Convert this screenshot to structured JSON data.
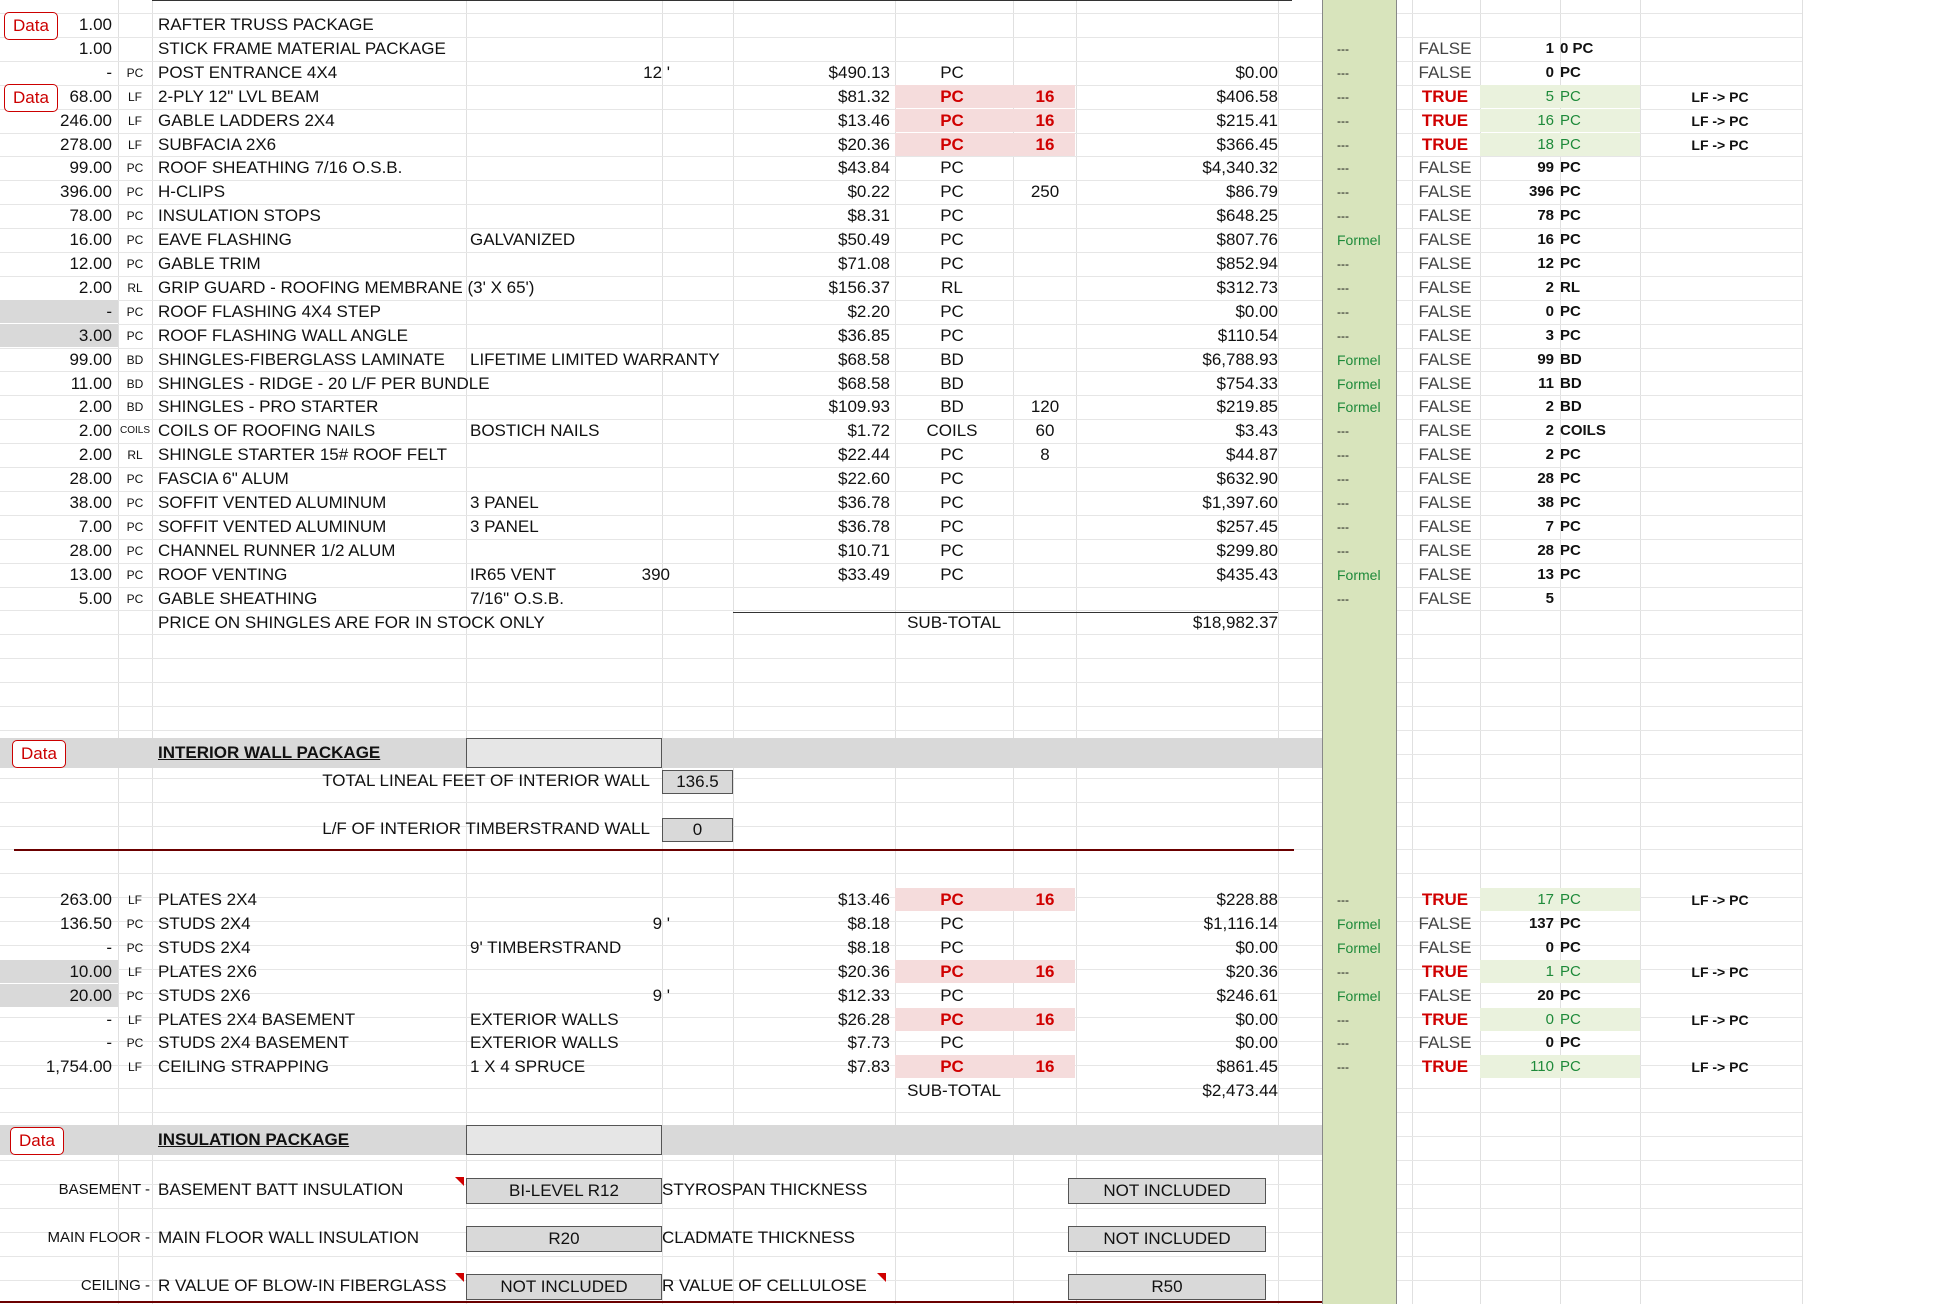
{
  "roof_rows": [
    {
      "qty": "1.00",
      "unit": "",
      "desc": "RAFTER TRUSS PACKAGE",
      "note": "",
      "len": "",
      "price": "",
      "uom": "",
      "mult": "",
      "total": "",
      "flag": "",
      "bool": "",
      "cnt": "",
      "cunit": "",
      "conv": "",
      "data_btn": "Data"
    },
    {
      "qty": "1.00",
      "unit": "",
      "desc": "STICK FRAME MATERIAL PACKAGE",
      "note": "",
      "len": "",
      "price": "",
      "uom": "",
      "mult": "",
      "total": "",
      "flag": "---",
      "bool": "FALSE",
      "cnt": "1",
      "cunit": "0 PC",
      "conv": ""
    },
    {
      "qty": "-",
      "unit": "PC",
      "desc": "POST ENTRANCE 4X4",
      "note": "",
      "len": "12 '",
      "price": "$490.13",
      "uom": "PC",
      "mult": "",
      "total": "$0.00",
      "flag": "---",
      "bool": "FALSE",
      "cnt": "0",
      "cunit": "PC",
      "conv": ""
    },
    {
      "qty": "68.00",
      "unit": "LF",
      "desc": "2-PLY 12\" LVL BEAM",
      "note": "",
      "len": "",
      "price": "$81.32",
      "uom": "PC",
      "mult": "16",
      "total": "$406.58",
      "flag": "---",
      "bool": "TRUE",
      "cnt": "5",
      "cunit": "PC",
      "conv": "LF -> PC",
      "data_btn": "Data"
    },
    {
      "qty": "246.00",
      "unit": "LF",
      "desc": "GABLE LADDERS 2X4",
      "note": "",
      "len": "",
      "price": "$13.46",
      "uom": "PC",
      "mult": "16",
      "total": "$215.41",
      "flag": "---",
      "bool": "TRUE",
      "cnt": "16",
      "cunit": "PC",
      "conv": "LF -> PC"
    },
    {
      "qty": "278.00",
      "unit": "LF",
      "desc": "SUBFACIA 2X6",
      "note": "",
      "len": "",
      "price": "$20.36",
      "uom": "PC",
      "mult": "16",
      "total": "$366.45",
      "flag": "---",
      "bool": "TRUE",
      "cnt": "18",
      "cunit": "PC",
      "conv": "LF -> PC"
    },
    {
      "qty": "99.00",
      "unit": "PC",
      "desc": "ROOF SHEATHING 7/16 O.S.B.",
      "note": "",
      "len": "",
      "price": "$43.84",
      "uom": "PC",
      "mult": "",
      "total": "$4,340.32",
      "flag": "---",
      "bool": "FALSE",
      "cnt": "99",
      "cunit": "PC",
      "conv": ""
    },
    {
      "qty": "396.00",
      "unit": "PC",
      "desc": "H-CLIPS",
      "note": "",
      "len": "",
      "price": "$0.22",
      "uom": "PC",
      "mult": "250",
      "total": "$86.79",
      "flag": "---",
      "bool": "FALSE",
      "cnt": "396",
      "cunit": "PC",
      "conv": ""
    },
    {
      "qty": "78.00",
      "unit": "PC",
      "desc": "INSULATION STOPS",
      "note": "",
      "len": "",
      "price": "$8.31",
      "uom": "PC",
      "mult": "",
      "total": "$648.25",
      "flag": "---",
      "bool": "FALSE",
      "cnt": "78",
      "cunit": "PC",
      "conv": ""
    },
    {
      "qty": "16.00",
      "unit": "PC",
      "desc": "EAVE FLASHING",
      "note": "GALVANIZED",
      "len": "",
      "price": "$50.49",
      "uom": "PC",
      "mult": "",
      "total": "$807.76",
      "flag": "Formel",
      "bool": "FALSE",
      "cnt": "16",
      "cunit": "PC",
      "conv": ""
    },
    {
      "qty": "12.00",
      "unit": "PC",
      "desc": "GABLE TRIM",
      "note": "",
      "len": "",
      "price": "$71.08",
      "uom": "PC",
      "mult": "",
      "total": "$852.94",
      "flag": "---",
      "bool": "FALSE",
      "cnt": "12",
      "cunit": "PC",
      "conv": ""
    },
    {
      "qty": "2.00",
      "unit": "RL",
      "desc": "GRIP GUARD - ROOFING MEMBRANE (3' X 65')",
      "note": "",
      "len": "",
      "price": "$156.37",
      "uom": "RL",
      "mult": "",
      "total": "$312.73",
      "flag": "---",
      "bool": "FALSE",
      "cnt": "2",
      "cunit": "RL",
      "conv": ""
    },
    {
      "qty": "-",
      "unit": "PC",
      "desc": "ROOF FLASHING 4X4 STEP",
      "note": "",
      "len": "",
      "price": "$2.20",
      "uom": "PC",
      "mult": "",
      "total": "$0.00",
      "flag": "---",
      "bool": "FALSE",
      "cnt": "0",
      "cunit": "PC",
      "conv": ""
    },
    {
      "qty": "3.00",
      "unit": "PC",
      "desc": "ROOF FLASHING WALL ANGLE",
      "note": "",
      "len": "",
      "price": "$36.85",
      "uom": "PC",
      "mult": "",
      "total": "$110.54",
      "flag": "---",
      "bool": "FALSE",
      "cnt": "3",
      "cunit": "PC",
      "conv": ""
    },
    {
      "qty": "99.00",
      "unit": "BD",
      "desc": "SHINGLES-FIBERGLASS LAMINATE",
      "note": "LIFETIME LIMITED WARRANTY",
      "len": "",
      "price": "$68.58",
      "uom": "BD",
      "mult": "",
      "total": "$6,788.93",
      "flag": "Formel",
      "bool": "FALSE",
      "cnt": "99",
      "cunit": "BD",
      "conv": ""
    },
    {
      "qty": "11.00",
      "unit": "BD",
      "desc": "SHINGLES - RIDGE - 20 L/F PER BUNDLE",
      "note": "",
      "len": "",
      "price": "$68.58",
      "uom": "BD",
      "mult": "",
      "total": "$754.33",
      "flag": "Formel",
      "bool": "FALSE",
      "cnt": "11",
      "cunit": "BD",
      "conv": ""
    },
    {
      "qty": "2.00",
      "unit": "BD",
      "desc": "SHINGLES - PRO STARTER",
      "note": "",
      "len": "",
      "price": "$109.93",
      "uom": "BD",
      "mult": "120",
      "total": "$219.85",
      "flag": "Formel",
      "bool": "FALSE",
      "cnt": "2",
      "cunit": "BD",
      "conv": ""
    },
    {
      "qty": "2.00",
      "unit": "COILS",
      "desc": "COILS OF ROOFING NAILS",
      "note": "BOSTICH NAILS",
      "len": "",
      "price": "$1.72",
      "uom": "COILS",
      "mult": "60",
      "total": "$3.43",
      "flag": "---",
      "bool": "FALSE",
      "cnt": "2",
      "cunit": "COILS",
      "conv": ""
    },
    {
      "qty": "2.00",
      "unit": "RL",
      "desc": "SHINGLE STARTER 15# ROOF FELT",
      "note": "",
      "len": "",
      "price": "$22.44",
      "uom": "PC",
      "mult": "8",
      "total": "$44.87",
      "flag": "---",
      "bool": "FALSE",
      "cnt": "2",
      "cunit": "PC",
      "conv": ""
    },
    {
      "qty": "28.00",
      "unit": "PC",
      "desc": "FASCIA 6\" ALUM",
      "note": "",
      "len": "",
      "price": "$22.60",
      "uom": "PC",
      "mult": "",
      "total": "$632.90",
      "flag": "---",
      "bool": "FALSE",
      "cnt": "28",
      "cunit": "PC",
      "conv": ""
    },
    {
      "qty": "38.00",
      "unit": "PC",
      "desc": "SOFFIT VENTED ALUMINUM",
      "note": "3 PANEL",
      "len": "",
      "price": "$36.78",
      "uom": "PC",
      "mult": "",
      "total": "$1,397.60",
      "flag": "---",
      "bool": "FALSE",
      "cnt": "38",
      "cunit": "PC",
      "conv": ""
    },
    {
      "qty": "7.00",
      "unit": "PC",
      "desc": "SOFFIT VENTED ALUMINUM",
      "note": "3 PANEL",
      "len": "",
      "price": "$36.78",
      "uom": "PC",
      "mult": "",
      "total": "$257.45",
      "flag": "---",
      "bool": "FALSE",
      "cnt": "7",
      "cunit": "PC",
      "conv": ""
    },
    {
      "qty": "28.00",
      "unit": "PC",
      "desc": "CHANNEL RUNNER 1/2 ALUM",
      "note": "",
      "len": "",
      "price": "$10.71",
      "uom": "PC",
      "mult": "",
      "total": "$299.80",
      "flag": "---",
      "bool": "FALSE",
      "cnt": "28",
      "cunit": "PC",
      "conv": ""
    },
    {
      "qty": "13.00",
      "unit": "PC",
      "desc": "ROOF VENTING",
      "note": "IR65 VENT",
      "len": "390",
      "price": "$33.49",
      "uom": "PC",
      "mult": "",
      "total": "$435.43",
      "flag": "Formel",
      "bool": "FALSE",
      "cnt": "13",
      "cunit": "PC",
      "conv": ""
    },
    {
      "qty": "5.00",
      "unit": "PC",
      "desc": "GABLE SHEATHING",
      "note": "7/16\" O.S.B.",
      "len": "",
      "price": "",
      "uom": "",
      "mult": "",
      "total": "",
      "flag": "---",
      "bool": "FALSE",
      "cnt": "5",
      "cunit": "",
      "conv": ""
    }
  ],
  "roof_footer": {
    "note": "PRICE ON SHINGLES ARE FOR IN STOCK ONLY",
    "subtotal_label": "SUB-TOTAL",
    "subtotal": "$18,982.37"
  },
  "interior": {
    "data_btn": "Data",
    "title": "INTERIOR WALL PACKAGE",
    "total_lf_label": "TOTAL LINEAL FEET OF INTERIOR WALL",
    "total_lf_value": "136.5",
    "timberstrand_label": "L/F OF INTERIOR TIMBERSTRAND WALL",
    "timberstrand_value": "0",
    "rows": [
      {
        "qty": "263.00",
        "unit": "LF",
        "desc": "PLATES 2X4",
        "note": "",
        "len": "",
        "price": "$13.46",
        "uom": "PC",
        "mult": "16",
        "total": "$228.88",
        "flag": "---",
        "bool": "TRUE",
        "cnt": "17",
        "cunit": "PC",
        "conv": "LF -> PC"
      },
      {
        "qty": "136.50",
        "unit": "PC",
        "desc": "STUDS 2X4",
        "note": "",
        "len": "9 '",
        "price": "$8.18",
        "uom": "PC",
        "mult": "",
        "total": "$1,116.14",
        "flag": "Formel",
        "bool": "FALSE",
        "cnt": "137",
        "cunit": "PC",
        "conv": ""
      },
      {
        "qty": "-",
        "unit": "PC",
        "desc": "STUDS 2X4",
        "note": "9' TIMBERSTRAND",
        "len": "",
        "price": "$8.18",
        "uom": "PC",
        "mult": "",
        "total": "$0.00",
        "flag": "Formel",
        "bool": "FALSE",
        "cnt": "0",
        "cunit": "PC",
        "conv": ""
      },
      {
        "qty": "10.00",
        "unit": "LF",
        "desc": "PLATES 2X6",
        "note": "",
        "len": "",
        "price": "$20.36",
        "uom": "PC",
        "mult": "16",
        "total": "$20.36",
        "flag": "---",
        "bool": "TRUE",
        "cnt": "1",
        "cunit": "PC",
        "conv": "LF -> PC"
      },
      {
        "qty": "20.00",
        "unit": "PC",
        "desc": "STUDS 2X6",
        "note": "",
        "len": "9 '",
        "price": "$12.33",
        "uom": "PC",
        "mult": "",
        "total": "$246.61",
        "flag": "Formel",
        "bool": "FALSE",
        "cnt": "20",
        "cunit": "PC",
        "conv": ""
      },
      {
        "qty": "-",
        "unit": "LF",
        "desc": "PLATES 2X4 BASEMENT",
        "note": "EXTERIOR WALLS",
        "len": "",
        "price": "$26.28",
        "uom": "PC",
        "mult": "16",
        "total": "$0.00",
        "flag": "---",
        "bool": "TRUE",
        "cnt": "0",
        "cunit": "PC",
        "conv": "LF -> PC"
      },
      {
        "qty": "-",
        "unit": "PC",
        "desc": "STUDS 2X4 BASEMENT",
        "note": "EXTERIOR WALLS",
        "len": "",
        "price": "$7.73",
        "uom": "PC",
        "mult": "",
        "total": "$0.00",
        "flag": "---",
        "bool": "FALSE",
        "cnt": "0",
        "cunit": "PC",
        "conv": ""
      },
      {
        "qty": "1,754.00",
        "unit": "LF",
        "desc": "CEILING STRAPPING",
        "note": "1 X 4 SPRUCE",
        "len": "",
        "price": "$7.83",
        "uom": "PC",
        "mult": "16",
        "total": "$861.45",
        "flag": "---",
        "bool": "TRUE",
        "cnt": "110",
        "cunit": "PC",
        "conv": "LF -> PC"
      }
    ],
    "subtotal_label": "SUB-TOTAL",
    "subtotal": "$2,473.44"
  },
  "insulation": {
    "data_btn": "Data",
    "title": "INSULATION PACKAGE",
    "rows": [
      {
        "area": "BASEMENT -",
        "desc": "BASEMENT BATT INSULATION",
        "value": "BI-LEVEL R12",
        "label2": "STYROSPAN THICKNESS",
        "value2": "NOT INCLUDED"
      },
      {
        "area": "MAIN FLOOR -",
        "desc": "MAIN FLOOR WALL INSULATION",
        "value": "R20",
        "label2": "CLADMATE THICKNESS",
        "value2": "NOT INCLUDED"
      },
      {
        "area": "CEILING -",
        "desc": "R VALUE OF BLOW-IN FIBERGLASS",
        "value": "NOT INCLUDED",
        "label2": "R VALUE OF CELLULOSE",
        "value2": "R50"
      }
    ]
  },
  "colors": {
    "red": "#d00000",
    "green": "#1e8a3a",
    "pink": "#f5dcdc",
    "green_col": "#d8e4bc",
    "gray": "#d9d9d9"
  }
}
